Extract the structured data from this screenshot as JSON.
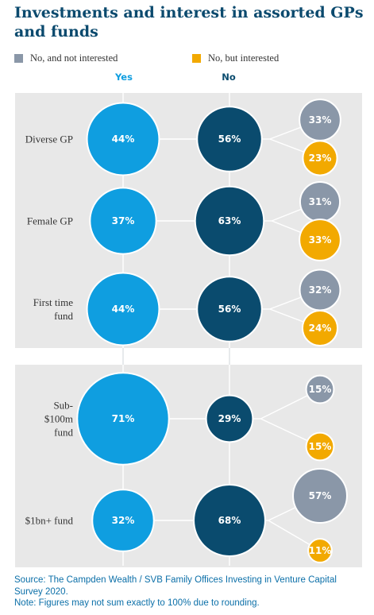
{
  "title": "Investments and interest in assorted GPs and funds",
  "legend": [
    {
      "label": "No, and not interested",
      "color": "#8a97a8"
    },
    {
      "label": "No, but interested",
      "color": "#f2a900"
    }
  ],
  "column_headers": {
    "yes": "Yes",
    "no": "No"
  },
  "colors": {
    "yes": "#0f9ee0",
    "no": "#0a4b6e",
    "not_interested": "#8a97a8",
    "interested": "#f2a900",
    "panel": "#e8e8e8"
  },
  "chart_data": {
    "type": "bubble",
    "rows": [
      {
        "label": [
          "Diverse GP"
        ],
        "yes": "44%",
        "no": "56%",
        "not_interested": "33%",
        "interested": "23%"
      },
      {
        "label": [
          "Female GP"
        ],
        "yes": "37%",
        "no": "63%",
        "not_interested": "31%",
        "interested": "33%"
      },
      {
        "label": [
          "First time",
          "fund"
        ],
        "yes": "44%",
        "no": "56%",
        "not_interested": "32%",
        "interested": "24%"
      },
      {
        "label": [
          "Sub-",
          "$100m",
          "fund"
        ],
        "yes": "71%",
        "no": "29%",
        "not_interested": "15%",
        "interested": "15%"
      },
      {
        "label": [
          "$1bn+ fund"
        ],
        "yes": "32%",
        "no": "68%",
        "not_interested": "57%",
        "interested": "11%"
      }
    ]
  },
  "source": [
    "Source: The Campden Wealth / SVB Family Offices Investing in Venture Capital",
    "Survey 2020.",
    "Note: Figures may not sum exactly to 100% due to rounding."
  ]
}
